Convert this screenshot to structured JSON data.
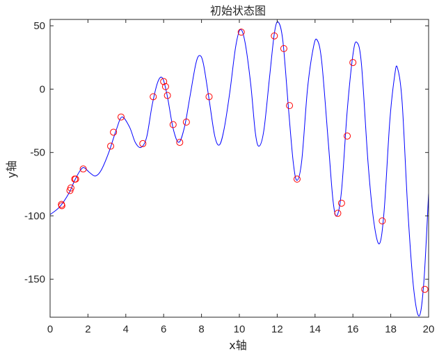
{
  "chart_data": {
    "type": "line",
    "title": "初始状态图",
    "xlabel": "x轴",
    "ylabel": "y轴",
    "xlim": [
      0,
      20
    ],
    "ylim": [
      -180,
      55
    ],
    "x_ticks": [
      0,
      2,
      4,
      6,
      8,
      10,
      12,
      14,
      16,
      18,
      20
    ],
    "y_ticks": [
      50,
      0,
      -50,
      -100,
      -150
    ],
    "grid": false,
    "legend": "none",
    "colors": {
      "curve": "#0000ff",
      "markers": "#ff0000",
      "axes": "#262626"
    },
    "curve": {
      "points": [
        [
          0,
          -99
        ],
        [
          0.5,
          -93
        ],
        [
          1.0,
          -82
        ],
        [
          1.3,
          -72
        ],
        [
          1.6,
          -64
        ],
        [
          1.8,
          -62
        ],
        [
          2.1,
          -66
        ],
        [
          2.4,
          -68.5
        ],
        [
          2.7,
          -64
        ],
        [
          3.1,
          -50
        ],
        [
          3.5,
          -32
        ],
        [
          3.8,
          -22
        ],
        [
          4.2,
          -30
        ],
        [
          4.5,
          -42
        ],
        [
          4.8,
          -46
        ],
        [
          5.1,
          -38
        ],
        [
          5.4,
          -12
        ],
        [
          5.7,
          6
        ],
        [
          5.95,
          8.5
        ],
        [
          6.2,
          -6
        ],
        [
          6.5,
          -31
        ],
        [
          6.8,
          -42
        ],
        [
          7.1,
          -30
        ],
        [
          7.4,
          -5
        ],
        [
          7.7,
          20
        ],
        [
          7.9,
          26.5
        ],
        [
          8.1,
          20
        ],
        [
          8.4,
          -8
        ],
        [
          8.7,
          -37
        ],
        [
          8.95,
          -44
        ],
        [
          9.2,
          -31
        ],
        [
          9.5,
          -2
        ],
        [
          9.8,
          33
        ],
        [
          10.05,
          47
        ],
        [
          10.3,
          37
        ],
        [
          10.6,
          4
        ],
        [
          10.85,
          -35
        ],
        [
          11.05,
          -45
        ],
        [
          11.3,
          -32
        ],
        [
          11.6,
          10
        ],
        [
          11.85,
          44
        ],
        [
          12.05,
          53
        ],
        [
          12.3,
          38
        ],
        [
          12.6,
          -16
        ],
        [
          12.85,
          -58
        ],
        [
          13.05,
          -72
        ],
        [
          13.3,
          -56
        ],
        [
          13.6,
          0
        ],
        [
          13.9,
          32
        ],
        [
          14.1,
          39
        ],
        [
          14.35,
          22
        ],
        [
          14.7,
          -42
        ],
        [
          14.95,
          -88
        ],
        [
          15.15,
          -100
        ],
        [
          15.4,
          -80
        ],
        [
          15.7,
          -17
        ],
        [
          16.0,
          27
        ],
        [
          16.2,
          37
        ],
        [
          16.45,
          20
        ],
        [
          16.8,
          -58
        ],
        [
          17.1,
          -104
        ],
        [
          17.4,
          -122
        ],
        [
          17.65,
          -96
        ],
        [
          17.95,
          -25
        ],
        [
          18.2,
          10
        ],
        [
          18.35,
          17
        ],
        [
          18.6,
          -10
        ],
        [
          18.9,
          -95
        ],
        [
          19.2,
          -156
        ],
        [
          19.5,
          -179
        ],
        [
          19.75,
          -152
        ],
        [
          20.0,
          -82
        ]
      ]
    },
    "markers": {
      "points": [
        [
          0.6,
          -91
        ],
        [
          0.62,
          -92
        ],
        [
          1.05,
          -80
        ],
        [
          1.1,
          -78
        ],
        [
          1.3,
          -71
        ],
        [
          1.35,
          -71
        ],
        [
          1.75,
          -63
        ],
        [
          3.2,
          -45
        ],
        [
          3.35,
          -34
        ],
        [
          3.75,
          -22
        ],
        [
          4.9,
          -43
        ],
        [
          5.45,
          -6
        ],
        [
          6.0,
          6
        ],
        [
          6.1,
          2
        ],
        [
          6.2,
          -5
        ],
        [
          6.5,
          -28
        ],
        [
          6.85,
          -42
        ],
        [
          7.2,
          -26
        ],
        [
          8.4,
          -6
        ],
        [
          10.1,
          45
        ],
        [
          11.85,
          42
        ],
        [
          12.35,
          32
        ],
        [
          12.65,
          -13
        ],
        [
          13.05,
          -71
        ],
        [
          15.2,
          -98
        ],
        [
          15.4,
          -90
        ],
        [
          15.7,
          -37
        ],
        [
          16.0,
          21
        ],
        [
          17.55,
          -104
        ],
        [
          19.8,
          -158
        ]
      ]
    }
  }
}
